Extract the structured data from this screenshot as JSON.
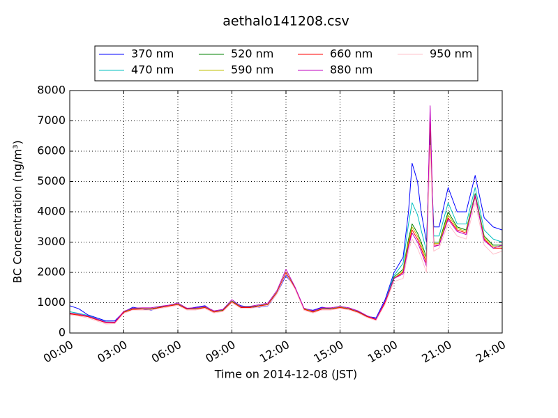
{
  "chart_data": {
    "type": "line",
    "title": "aethalo141208.csv",
    "x_label": "Time on 2014-12-08 (JST)",
    "y_label": "BC Concentration (ng/m³)",
    "xlim": [
      0,
      24
    ],
    "xticks": [
      {
        "value": 0,
        "label": "00:00"
      },
      {
        "value": 3,
        "label": "03:00"
      },
      {
        "value": 6,
        "label": "06:00"
      },
      {
        "value": 9,
        "label": "09:00"
      },
      {
        "value": 12,
        "label": "12:00"
      },
      {
        "value": 15,
        "label": "15:00"
      },
      {
        "value": 18,
        "label": "18:00"
      },
      {
        "value": 21,
        "label": "21:00"
      },
      {
        "value": 24,
        "label": "24:00"
      }
    ],
    "ylim": [
      0,
      8000
    ],
    "yticks": [
      0,
      1000,
      2000,
      3000,
      4000,
      5000,
      6000,
      7000,
      8000
    ],
    "grid": true,
    "legend": "top",
    "x": [
      0,
      0.5,
      1,
      1.5,
      2,
      2.5,
      3,
      3.5,
      4,
      4.5,
      5,
      5.5,
      6,
      6.5,
      7,
      7.5,
      8,
      8.5,
      9,
      9.5,
      10,
      10.5,
      11,
      11.5,
      12,
      12.5,
      13,
      13.5,
      14,
      14.5,
      15,
      15.5,
      16,
      16.5,
      17,
      17.5,
      18,
      18.5,
      18.8,
      19,
      19.3,
      19.5,
      19.8,
      20,
      20.2,
      20.5,
      21,
      21.5,
      22,
      22.5,
      23,
      23.5,
      24
    ],
    "series": [
      {
        "name": "370 nm",
        "color": "#0000ff",
        "values": [
          900,
          800,
          600,
          500,
          400,
          400,
          700,
          850,
          800,
          750,
          850,
          900,
          950,
          800,
          850,
          900,
          700,
          750,
          1050,
          900,
          850,
          850,
          900,
          1300,
          1900,
          1500,
          800,
          750,
          850,
          800,
          850,
          800,
          700,
          550,
          500,
          1100,
          2000,
          2500,
          4000,
          5600,
          5000,
          4000,
          3000,
          6500,
          3500,
          3500,
          4800,
          4000,
          4000,
          5200,
          3800,
          3500,
          3400
        ]
      },
      {
        "name": "470 nm",
        "color": "#00bfbf",
        "values": [
          700,
          650,
          580,
          470,
          370,
          360,
          700,
          820,
          800,
          780,
          850,
          900,
          960,
          800,
          820,
          870,
          700,
          760,
          1050,
          870,
          860,
          900,
          950,
          1340,
          1980,
          1500,
          800,
          720,
          820,
          800,
          860,
          800,
          700,
          560,
          470,
          1050,
          1900,
          2300,
          3600,
          4300,
          3900,
          3400,
          2700,
          6800,
          3200,
          3200,
          4300,
          3600,
          3600,
          4800,
          3400,
          3100,
          3000
        ]
      },
      {
        "name": "520 nm",
        "color": "#008000",
        "values": [
          650,
          600,
          550,
          450,
          350,
          350,
          700,
          800,
          800,
          800,
          850,
          900,
          950,
          800,
          800,
          850,
          700,
          750,
          1050,
          850,
          850,
          900,
          950,
          1350,
          2000,
          1500,
          800,
          700,
          800,
          800,
          850,
          800,
          700,
          550,
          450,
          1000,
          1850,
          2100,
          3100,
          3600,
          3300,
          3000,
          2500,
          7000,
          3000,
          3000,
          4000,
          3500,
          3400,
          4600,
          3200,
          2900,
          2900
        ]
      },
      {
        "name": "590 nm",
        "color": "#bfbf00",
        "values": [
          640,
          600,
          540,
          440,
          350,
          340,
          690,
          790,
          800,
          790,
          840,
          900,
          950,
          790,
          800,
          850,
          700,
          740,
          1040,
          850,
          840,
          890,
          940,
          1340,
          2000,
          1480,
          790,
          700,
          800,
          790,
          850,
          790,
          690,
          540,
          450,
          1000,
          1800,
          2050,
          3000,
          3500,
          3200,
          2900,
          2400,
          7100,
          2950,
          2950,
          3900,
          3450,
          3350,
          4550,
          3150,
          2850,
          2850
        ]
      },
      {
        "name": "660 nm",
        "color": "#ff0000",
        "values": [
          630,
          590,
          540,
          440,
          340,
          340,
          680,
          780,
          790,
          790,
          840,
          890,
          940,
          790,
          790,
          840,
          690,
          740,
          1030,
          840,
          840,
          890,
          940,
          1330,
          1990,
          1470,
          780,
          690,
          790,
          790,
          840,
          790,
          690,
          540,
          440,
          1000,
          1800,
          2000,
          2900,
          3400,
          3100,
          2800,
          2300,
          7200,
          2900,
          2900,
          3800,
          3400,
          3300,
          4500,
          3100,
          2800,
          2800
        ]
      },
      {
        "name": "880 nm",
        "color": "#bf00bf",
        "values": [
          660,
          620,
          560,
          460,
          360,
          360,
          720,
          820,
          830,
          830,
          880,
          920,
          990,
          820,
          830,
          880,
          730,
          780,
          1100,
          880,
          880,
          930,
          990,
          1400,
          2100,
          1520,
          820,
          730,
          830,
          830,
          880,
          830,
          730,
          570,
          460,
          1050,
          1800,
          1950,
          2850,
          3300,
          3000,
          2700,
          2200,
          7500,
          2850,
          2900,
          3750,
          3350,
          3250,
          4550,
          3050,
          2800,
          2900
        ]
      },
      {
        "name": "950 nm",
        "color": "#ffc0cb",
        "values": [
          600,
          560,
          500,
          400,
          300,
          310,
          650,
          760,
          760,
          760,
          810,
          860,
          910,
          760,
          760,
          810,
          660,
          710,
          1000,
          810,
          810,
          860,
          910,
          1300,
          1950,
          1450,
          750,
          660,
          760,
          760,
          810,
          760,
          660,
          510,
          410,
          950,
          1700,
          1800,
          2700,
          3100,
          2800,
          2500,
          2000,
          6200,
          2700,
          2800,
          3600,
          3200,
          3100,
          4300,
          2900,
          2600,
          2700
        ]
      }
    ]
  }
}
